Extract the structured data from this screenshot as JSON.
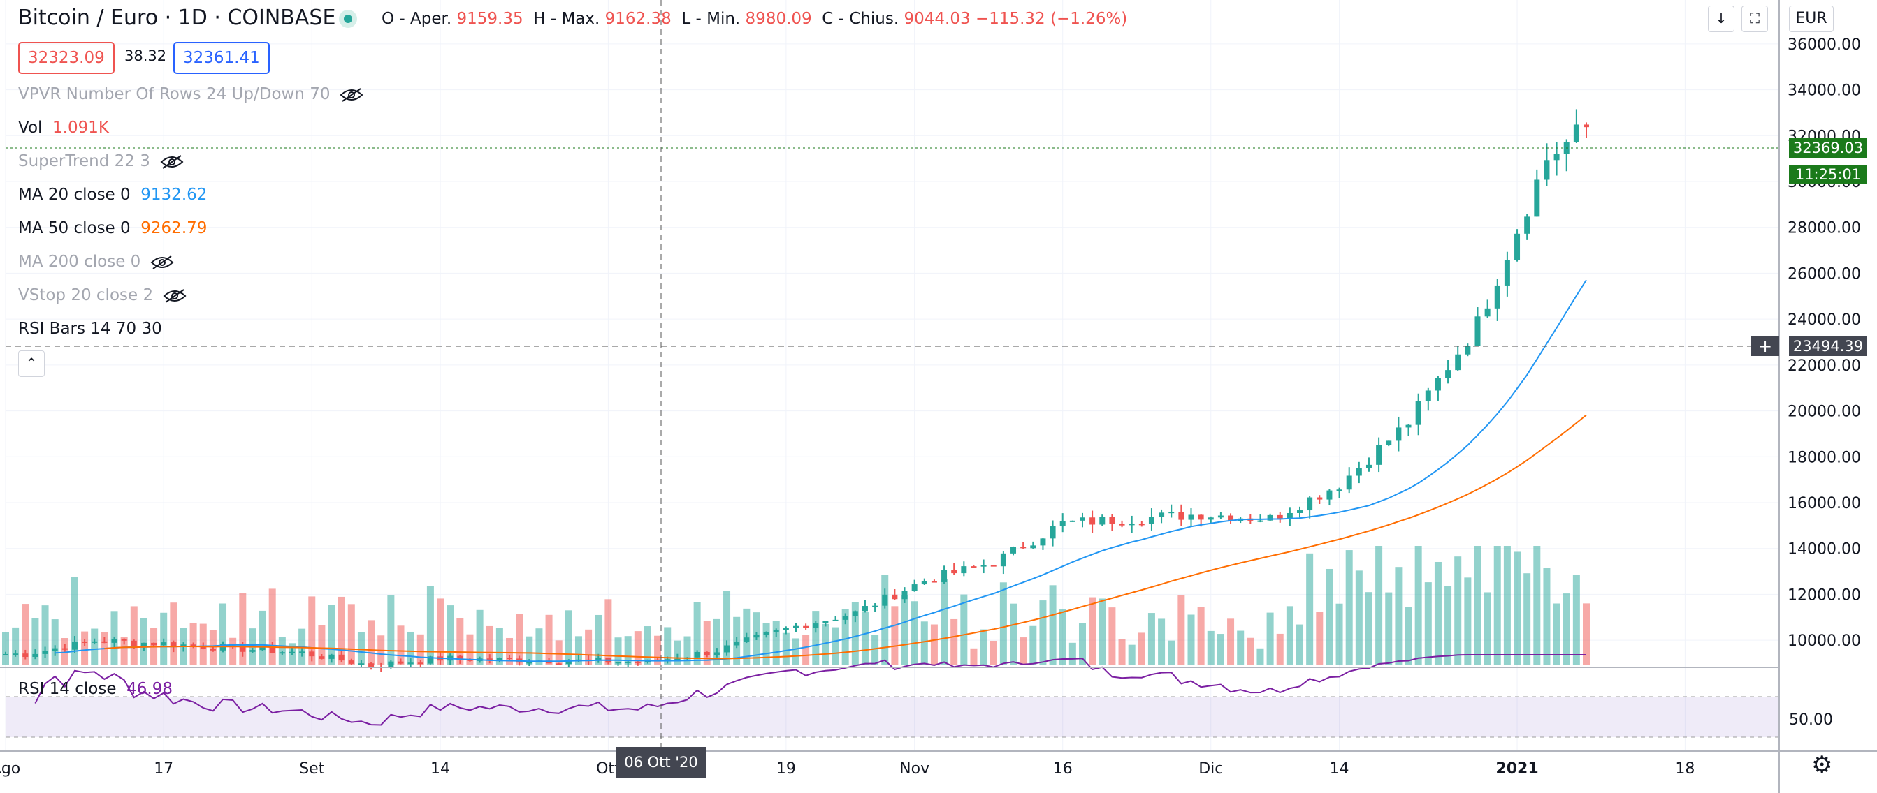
{
  "header": {
    "symbol": "Bitcoin / Euro · 1D · COINBASE",
    "o_label": "O - Aper.",
    "o_value": "9159.35",
    "h_label": "H - Max.",
    "h_value": "9162.38",
    "l_label": "L - Min.",
    "l_value": "8980.09",
    "c_label": "C - Chius.",
    "c_value": "9044.03",
    "change": "−115.32 (−1.26%)"
  },
  "quote": {
    "bid": "32323.09",
    "spread": "38.32",
    "ask": "32361.41"
  },
  "currency": "EUR",
  "indicators": [
    {
      "label": "VPVR Number Of Rows 24 Up/Down 70",
      "value": "",
      "hidden": true
    },
    {
      "label": "Vol",
      "value": "1.091K",
      "hidden": false
    },
    {
      "label": "SuperTrend 22 3",
      "value": "",
      "hidden": true
    },
    {
      "label": "MA 20 close 0",
      "value": "9132.62",
      "hidden": false
    },
    {
      "label": "MA 50 close 0",
      "value": "9262.79",
      "hidden": false
    },
    {
      "label": "MA 200 close 0",
      "value": "",
      "hidden": true
    },
    {
      "label": "VStop 20 close 2",
      "value": "",
      "hidden": true
    },
    {
      "label": "RSI Bars 14 70 30",
      "value": "",
      "hidden": false
    }
  ],
  "rsi": {
    "label": "RSI 14 close",
    "value": "46.98",
    "tick": "50.00"
  },
  "price_tags": {
    "last": "32369.03",
    "countdown": "11:25:01",
    "crosshair": "23494.39"
  },
  "crosshair_date": "06 Ott '20",
  "colors": {
    "up": "#26a69a",
    "down": "#ef5350",
    "ma20": "#2196f3",
    "ma50": "#ff6d00",
    "rsi": "#7b1fa2",
    "accent": "#2962ff"
  },
  "chart_data": {
    "type": "candlestick",
    "title": "Bitcoin / Euro · 1D · COINBASE",
    "x_ticks": [
      "Ago",
      "17",
      "Set",
      "14",
      "Ott",
      "19",
      "Nov",
      "16",
      "Dic",
      "14",
      "2021",
      "18"
    ],
    "y_ticks": [
      "10000.00",
      "12000.00",
      "14000.00",
      "16000.00",
      "18000.00",
      "20000.00",
      "22000.00",
      "24000.00",
      "26000.00",
      "28000.00",
      "30000.00",
      "32000.00",
      "34000.00",
      "36000.00"
    ],
    "ylim": [
      9000,
      37000
    ],
    "close_weekly": [
      [
        "2020-08-03",
        9400
      ],
      [
        "2020-08-10",
        9980
      ],
      [
        "2020-08-17",
        9850
      ],
      [
        "2020-08-24",
        9650
      ],
      [
        "2020-08-31",
        9450
      ],
      [
        "2020-09-07",
        8900
      ],
      [
        "2020-09-14",
        9200
      ],
      [
        "2020-09-21",
        9150
      ],
      [
        "2020-09-28",
        9100
      ],
      [
        "2020-10-05",
        9050
      ],
      [
        "2020-10-12",
        9550
      ],
      [
        "2020-10-19",
        10500
      ],
      [
        "2020-10-26",
        11200
      ],
      [
        "2020-11-02",
        12600
      ],
      [
        "2020-11-09",
        13400
      ],
      [
        "2020-11-16",
        15100
      ],
      [
        "2020-11-23",
        15300
      ],
      [
        "2020-11-30",
        15500
      ],
      [
        "2020-12-07",
        15300
      ],
      [
        "2020-12-14",
        16800
      ],
      [
        "2020-12-21",
        19500
      ],
      [
        "2020-12-28",
        23800
      ],
      [
        "2021-01-04",
        31000
      ],
      [
        "2021-01-08",
        32369
      ]
    ],
    "ma20_end": 25000,
    "ma50_end": 19700,
    "volume": "1.091K",
    "rsi_last": 46.98
  }
}
